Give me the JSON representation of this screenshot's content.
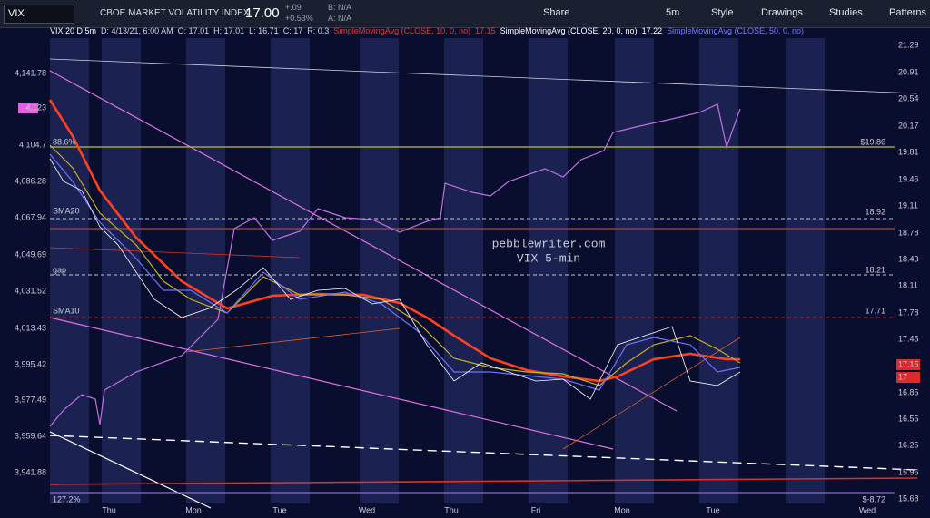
{
  "toolbar": {
    "symbol": "VIX",
    "description": "CBOE MARKET VOLATILITY INDEX",
    "last": "17.00",
    "change": "+.09",
    "change_pct": "+0.53%",
    "bid": "B: N/A",
    "ask": "A: N/A",
    "buttons": [
      "Share",
      "5m",
      "Style",
      "Drawings",
      "Studies",
      "Patterns"
    ]
  },
  "header": {
    "items": [
      "VIX 20 D 5m",
      "D: 4/13/21, 6:00 AM",
      "O: 17.01",
      "H: 17.01",
      "L: 16.71",
      "C: 17",
      "R: 0.3"
    ],
    "studies": [
      {
        "label": "SimpleMovingAvg (CLOSE, 10, 0, no)",
        "value": "17.15",
        "color": "#e0413a"
      },
      {
        "label": "SimpleMovingAvg (CLOSE, 20, 0, no)",
        "value": "17.22",
        "color": "#ffffff"
      },
      {
        "label": "SimpleMovingAvg (CLOSE, 50, 0, no)",
        "value": "",
        "color": "#7b7bff"
      }
    ]
  },
  "left_axis": [
    "4,141.78",
    "4,123",
    "4,104.7",
    "4,086.28",
    "4,067.94",
    "4,049.69",
    "4,031.52",
    "4,013.43",
    "3,995.42",
    "3,977.49",
    "3,959.64",
    "3,941.88"
  ],
  "right_axis": [
    "21.29",
    "20.91",
    "20.54",
    "20.17",
    "19.81",
    "19.46",
    "19.11",
    "18.78",
    "18.43",
    "18.11",
    "17.78",
    "17.45",
    "17.15",
    "17",
    "16.85",
    "16.55",
    "16.25",
    "15.96",
    "15.68"
  ],
  "x_axis": [
    "Thu",
    "Mon",
    "Tue",
    "Wed",
    "Thu",
    "Fri",
    "Mon",
    "Tue",
    "Wed"
  ],
  "annotations": {
    "fib_top": "88.6%",
    "fib_top_value": "$19.86",
    "sma20": "SMA20",
    "sma20_value": "18.92",
    "gap": "gap",
    "gap_value": "18.21",
    "sma10": "SMA10",
    "sma10_value": "17.71",
    "fib_bottom": "127.2%",
    "fib_bottom_value": "$-8.72"
  },
  "watermark": [
    "pebblewriter.com",
    "VIX 5-min"
  ]
}
